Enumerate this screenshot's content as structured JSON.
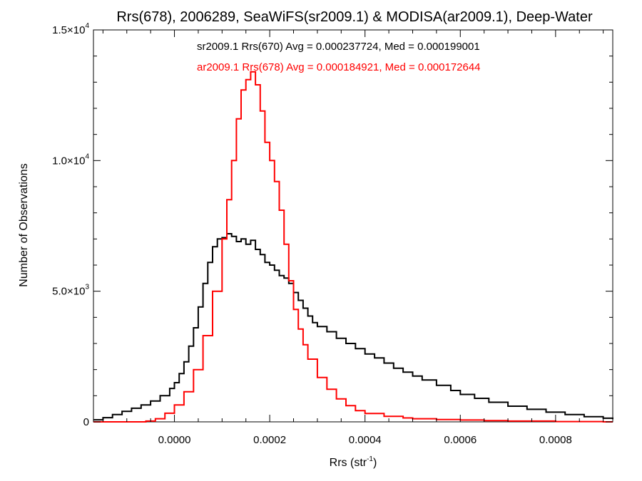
{
  "chart_data": {
    "type": "line",
    "title": "Rrs(678), 2006289, SeaWiFS(sr2009.1) & MODISA(ar2009.1), Deep-Water",
    "xlabel": {
      "base": "Rrs (str",
      "sup": "-1",
      "end": ")"
    },
    "ylabel": "Number of Observations",
    "xlim": [
      -0.00017,
      0.00092
    ],
    "ylim": [
      0,
      15000
    ],
    "x_ticks": [
      {
        "value": 0.0,
        "label": "0.0000"
      },
      {
        "value": 0.0002,
        "label": "0.0002"
      },
      {
        "value": 0.0004,
        "label": "0.0004"
      },
      {
        "value": 0.0006,
        "label": "0.0006"
      },
      {
        "value": 0.0008,
        "label": "0.0008"
      }
    ],
    "y_ticks": [
      {
        "value": 0,
        "mant": "0",
        "exp": ""
      },
      {
        "value": 5000,
        "mant": "5.0×10",
        "exp": "3"
      },
      {
        "value": 10000,
        "mant": "1.0×10",
        "exp": "4"
      },
      {
        "value": 15000,
        "mant": "1.5×10",
        "exp": "4"
      }
    ],
    "grid": false,
    "annotations": [
      {
        "text": "sr2009.1 Rrs(670) Avg = 0.000237724, Med = 0.000199001",
        "color": "#000000"
      },
      {
        "text": "ar2009.1 Rrs(678) Avg = 0.000184921, Med = 0.000172644",
        "color": "#ff0000"
      }
    ],
    "series": [
      {
        "color": "#000000",
        "x": [
          -0.00017,
          -0.00015,
          -0.00013,
          -0.00011,
          -9e-05,
          -7e-05,
          -5e-05,
          -3e-05,
          -1e-05,
          0.0,
          1e-05,
          2e-05,
          3e-05,
          4e-05,
          5e-05,
          6e-05,
          7e-05,
          8e-05,
          9e-05,
          0.0001,
          0.00011,
          0.00012,
          0.00013,
          0.00014,
          0.00015,
          0.00016,
          0.00017,
          0.00018,
          0.00019,
          0.0002,
          0.00021,
          0.00022,
          0.00023,
          0.00024,
          0.00025,
          0.00026,
          0.00027,
          0.00028,
          0.00029,
          0.0003,
          0.00032,
          0.00034,
          0.00036,
          0.00038,
          0.0004,
          0.00042,
          0.00044,
          0.00046,
          0.00048,
          0.0005,
          0.00052,
          0.00055,
          0.00058,
          0.0006,
          0.00063,
          0.00066,
          0.0007,
          0.00074,
          0.00078,
          0.00082,
          0.00086,
          0.0009,
          0.00092
        ],
        "y": [
          80,
          160,
          280,
          400,
          520,
          650,
          800,
          1000,
          1280,
          1500,
          1850,
          2300,
          2900,
          3600,
          4400,
          5300,
          6100,
          6700,
          7000,
          7050,
          7200,
          7100,
          6900,
          7000,
          6800,
          6950,
          6600,
          6400,
          6100,
          6000,
          5800,
          5600,
          5500,
          5300,
          4950,
          4650,
          4350,
          4050,
          3800,
          3650,
          3450,
          3200,
          3000,
          2800,
          2600,
          2450,
          2250,
          2050,
          1900,
          1750,
          1600,
          1400,
          1200,
          1050,
          900,
          750,
          600,
          480,
          370,
          280,
          200,
          140,
          100
        ]
      },
      {
        "color": "#ff0000",
        "x": [
          -0.00017,
          -0.00012,
          -8e-05,
          -6e-05,
          -4e-05,
          -2e-05,
          0.0,
          2e-05,
          4e-05,
          6e-05,
          8e-05,
          0.0001,
          0.00011,
          0.00012,
          0.00013,
          0.00014,
          0.00015,
          0.00016,
          0.00017,
          0.00018,
          0.00019,
          0.0002,
          0.00021,
          0.00022,
          0.00023,
          0.00024,
          0.00025,
          0.00026,
          0.00027,
          0.00028,
          0.0003,
          0.00032,
          0.00034,
          0.00036,
          0.00038,
          0.0004,
          0.00044,
          0.00048,
          0.0005,
          0.00055,
          0.0006,
          0.00065,
          0.0007,
          0.0008,
          0.0009,
          0.00092
        ],
        "y": [
          0,
          0,
          0,
          30,
          120,
          330,
          650,
          1150,
          2000,
          3300,
          5000,
          7000,
          8500,
          10000,
          11600,
          12700,
          13100,
          13400,
          12900,
          11900,
          10700,
          10000,
          9200,
          8100,
          6800,
          5400,
          4300,
          3550,
          2950,
          2400,
          1700,
          1250,
          880,
          620,
          430,
          320,
          210,
          150,
          120,
          90,
          70,
          50,
          30,
          10,
          0,
          0
        ]
      }
    ]
  }
}
